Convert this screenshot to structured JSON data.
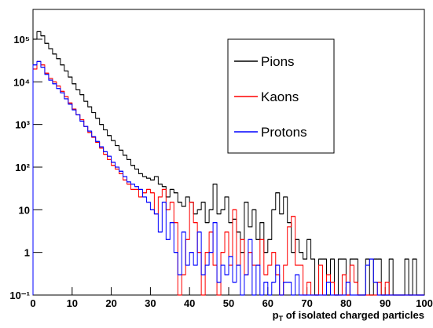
{
  "chart_data": {
    "type": "histogram",
    "xlabel": [
      "p",
      "T",
      " of isolated charged particles"
    ],
    "bins": [
      0,
      1,
      2,
      3,
      4,
      5,
      6,
      7,
      8,
      9,
      10,
      11,
      12,
      13,
      14,
      15,
      16,
      17,
      18,
      19,
      20,
      21,
      22,
      23,
      24,
      25,
      26,
      27,
      28,
      29,
      30,
      31,
      32,
      33,
      34,
      35,
      36,
      37,
      38,
      39,
      40,
      41,
      42,
      43,
      44,
      45,
      46,
      47,
      48,
      49,
      50,
      51,
      52,
      53,
      54,
      55,
      56,
      57,
      58,
      59,
      60,
      61,
      62,
      63,
      64,
      65,
      66,
      67,
      68,
      69,
      70,
      71,
      72,
      73,
      74,
      75,
      76,
      77,
      78,
      79,
      80,
      81,
      82,
      83,
      84,
      85,
      86,
      87,
      88,
      89,
      90,
      91,
      92,
      93,
      94,
      95,
      96,
      97,
      98,
      99,
      100
    ],
    "series": [
      {
        "name": "Pions",
        "color": "#000000",
        "values": [
          100000,
          150000,
          120000,
          80000,
          60000,
          45000,
          35000,
          25000,
          18000,
          13000,
          9000,
          6500,
          5000,
          3500,
          2600,
          1900,
          1400,
          1000,
          750,
          550,
          420,
          320,
          250,
          190,
          150,
          110,
          90,
          70,
          60,
          55,
          50,
          60,
          40,
          35,
          20,
          30,
          25,
          15,
          12,
          20,
          15,
          8,
          10,
          15,
          5,
          10,
          40,
          8,
          10,
          20,
          5,
          6,
          3,
          1,
          15,
          4,
          10,
          2,
          5,
          1,
          2,
          10,
          25,
          8,
          20,
          5,
          1,
          2,
          1,
          0.7,
          2,
          0.7,
          0,
          0.7,
          0.7,
          0,
          0.7,
          0,
          0.7,
          0.7,
          0,
          0.7,
          0.7,
          0,
          0,
          0.7,
          0,
          0.7,
          0.7,
          0,
          0,
          0.7,
          0,
          0,
          0,
          0.7,
          0,
          0.7,
          0,
          0
        ]
      },
      {
        "name": "Kaons",
        "color": "#ff0000",
        "values": [
          20000,
          30000,
          25000,
          16000,
          12000,
          10000,
          8000,
          6000,
          4500,
          3200,
          2300,
          1700,
          1300,
          900,
          650,
          500,
          380,
          280,
          200,
          150,
          110,
          90,
          70,
          50,
          40,
          30,
          30,
          20,
          25,
          30,
          25,
          8,
          20,
          30,
          10,
          15,
          5,
          0,
          0.3,
          2,
          15,
          5,
          1,
          0,
          1,
          3,
          0.5,
          0,
          1,
          3,
          0.5,
          10,
          0.5,
          2,
          0.3,
          1,
          0.5,
          0.5,
          2,
          0.3,
          0.5,
          1,
          0.3,
          0,
          0.5,
          4,
          7,
          0.5,
          0.5,
          0,
          0.2,
          0,
          0,
          0.5,
          0,
          0.3,
          0.2,
          0,
          0,
          0.3,
          0,
          0.5,
          0.2,
          0,
          0,
          0,
          0,
          0,
          0.2,
          0,
          0.2,
          0,
          0,
          0,
          0,
          0,
          0,
          0,
          0,
          0
        ]
      },
      {
        "name": "Protons",
        "color": "#0000ff",
        "values": [
          25000,
          30000,
          22000,
          15000,
          11000,
          9000,
          7000,
          5500,
          4000,
          3000,
          2200,
          1700,
          1200,
          900,
          700,
          520,
          400,
          300,
          230,
          180,
          130,
          100,
          80,
          60,
          45,
          40,
          35,
          30,
          20,
          15,
          10,
          8,
          3,
          15,
          2,
          5,
          1,
          0.3,
          3,
          0.5,
          1,
          0.5,
          3,
          0.3,
          0.5,
          1,
          5,
          0.2,
          0.5,
          0.3,
          0.8,
          0.2,
          0.5,
          0,
          0.3,
          2,
          0,
          0.5,
          0,
          0.2,
          0,
          0.2,
          0.5,
          0,
          0.2,
          0.2,
          0,
          0.3,
          0,
          0,
          0,
          0,
          0,
          0,
          0,
          0.2,
          0,
          0,
          0,
          0,
          0.2,
          0,
          0,
          0,
          0,
          0.5,
          0.7,
          0.2,
          0,
          0,
          0,
          0,
          0,
          0,
          0,
          0,
          0,
          0,
          0,
          0
        ]
      }
    ],
    "xlim": [
      0,
      100
    ],
    "xticks": [
      0,
      10,
      20,
      30,
      40,
      50,
      60,
      70,
      80,
      90,
      100
    ],
    "ylim": [
      0.1,
      500000
    ],
    "yscale": "log",
    "yticks": [
      {
        "value": 0.1,
        "label": "10⁻¹"
      },
      1,
      10,
      {
        "value": 100,
        "label": "10²"
      },
      {
        "value": 1000,
        "label": "10³"
      },
      {
        "value": 10000,
        "label": "10⁴"
      },
      {
        "value": 100000,
        "label": "10⁵"
      }
    ],
    "grid": false,
    "legend": "upper right"
  }
}
